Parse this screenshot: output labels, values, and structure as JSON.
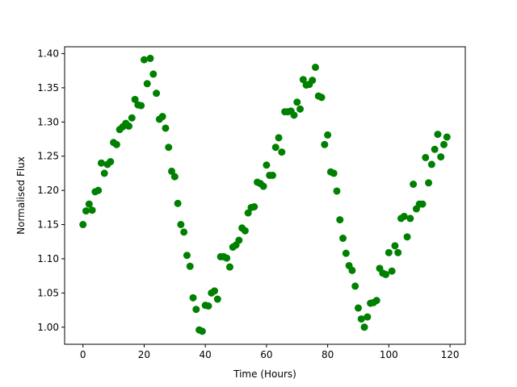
{
  "chart_data": {
    "type": "scatter",
    "xlabel": "Time (Hours)",
    "ylabel": "Normalised Flux",
    "xlim": [
      -6,
      125
    ],
    "ylim": [
      0.975,
      1.41
    ],
    "xticks": [
      0,
      20,
      40,
      60,
      80,
      100,
      120
    ],
    "yticks": [
      1.0,
      1.05,
      1.1,
      1.15,
      1.2,
      1.25,
      1.3,
      1.35,
      1.4
    ],
    "ytick_labels": [
      "1.00",
      "1.05",
      "1.10",
      "1.15",
      "1.20",
      "1.25",
      "1.30",
      "1.35",
      "1.40"
    ],
    "grid": false,
    "marker_color": "#008000",
    "points": [
      {
        "x": 0,
        "y": 1.15
      },
      {
        "x": 1,
        "y": 1.17
      },
      {
        "x": 2,
        "y": 1.18
      },
      {
        "x": 3,
        "y": 1.171
      },
      {
        "x": 4,
        "y": 1.198
      },
      {
        "x": 5,
        "y": 1.2
      },
      {
        "x": 6,
        "y": 1.24
      },
      {
        "x": 7,
        "y": 1.225
      },
      {
        "x": 8,
        "y": 1.238
      },
      {
        "x": 9,
        "y": 1.242
      },
      {
        "x": 10,
        "y": 1.27
      },
      {
        "x": 11,
        "y": 1.267
      },
      {
        "x": 12,
        "y": 1.289
      },
      {
        "x": 13,
        "y": 1.293
      },
      {
        "x": 14,
        "y": 1.298
      },
      {
        "x": 15,
        "y": 1.294
      },
      {
        "x": 16,
        "y": 1.306
      },
      {
        "x": 17,
        "y": 1.333
      },
      {
        "x": 18,
        "y": 1.325
      },
      {
        "x": 19,
        "y": 1.324
      },
      {
        "x": 20,
        "y": 1.391
      },
      {
        "x": 21,
        "y": 1.356
      },
      {
        "x": 22,
        "y": 1.393
      },
      {
        "x": 23,
        "y": 1.37
      },
      {
        "x": 24,
        "y": 1.342
      },
      {
        "x": 25,
        "y": 1.304
      },
      {
        "x": 26,
        "y": 1.308
      },
      {
        "x": 27,
        "y": 1.291
      },
      {
        "x": 28,
        "y": 1.263
      },
      {
        "x": 29,
        "y": 1.228
      },
      {
        "x": 30,
        "y": 1.22
      },
      {
        "x": 31,
        "y": 1.181
      },
      {
        "x": 32,
        "y": 1.15
      },
      {
        "x": 33,
        "y": 1.139
      },
      {
        "x": 34,
        "y": 1.105
      },
      {
        "x": 35,
        "y": 1.089
      },
      {
        "x": 36,
        "y": 1.043
      },
      {
        "x": 37,
        "y": 1.026
      },
      {
        "x": 38,
        "y": 0.996
      },
      {
        "x": 39,
        "y": 0.994
      },
      {
        "x": 40,
        "y": 1.032
      },
      {
        "x": 41,
        "y": 1.031
      },
      {
        "x": 42,
        "y": 1.05
      },
      {
        "x": 43,
        "y": 1.053
      },
      {
        "x": 44,
        "y": 1.041
      },
      {
        "x": 45,
        "y": 1.103
      },
      {
        "x": 46,
        "y": 1.103
      },
      {
        "x": 47,
        "y": 1.101
      },
      {
        "x": 48,
        "y": 1.088
      },
      {
        "x": 49,
        "y": 1.117
      },
      {
        "x": 50,
        "y": 1.12
      },
      {
        "x": 51,
        "y": 1.127
      },
      {
        "x": 52,
        "y": 1.145
      },
      {
        "x": 53,
        "y": 1.141
      },
      {
        "x": 54,
        "y": 1.167
      },
      {
        "x": 55,
        "y": 1.175
      },
      {
        "x": 56,
        "y": 1.176
      },
      {
        "x": 57,
        "y": 1.212
      },
      {
        "x": 58,
        "y": 1.21
      },
      {
        "x": 59,
        "y": 1.206
      },
      {
        "x": 60,
        "y": 1.237
      },
      {
        "x": 61,
        "y": 1.222
      },
      {
        "x": 62,
        "y": 1.222
      },
      {
        "x": 63,
        "y": 1.263
      },
      {
        "x": 64,
        "y": 1.277
      },
      {
        "x": 65,
        "y": 1.256
      },
      {
        "x": 66,
        "y": 1.315
      },
      {
        "x": 67,
        "y": 1.315
      },
      {
        "x": 68,
        "y": 1.316
      },
      {
        "x": 69,
        "y": 1.31
      },
      {
        "x": 70,
        "y": 1.329
      },
      {
        "x": 71,
        "y": 1.319
      },
      {
        "x": 72,
        "y": 1.362
      },
      {
        "x": 73,
        "y": 1.354
      },
      {
        "x": 74,
        "y": 1.355
      },
      {
        "x": 75,
        "y": 1.361
      },
      {
        "x": 76,
        "y": 1.38
      },
      {
        "x": 77,
        "y": 1.338
      },
      {
        "x": 78,
        "y": 1.336
      },
      {
        "x": 79,
        "y": 1.267
      },
      {
        "x": 80,
        "y": 1.281
      },
      {
        "x": 81,
        "y": 1.227
      },
      {
        "x": 82,
        "y": 1.225
      },
      {
        "x": 83,
        "y": 1.199
      },
      {
        "x": 84,
        "y": 1.157
      },
      {
        "x": 85,
        "y": 1.13
      },
      {
        "x": 86,
        "y": 1.108
      },
      {
        "x": 87,
        "y": 1.09
      },
      {
        "x": 88,
        "y": 1.083
      },
      {
        "x": 89,
        "y": 1.06
      },
      {
        "x": 90,
        "y": 1.028
      },
      {
        "x": 91,
        "y": 1.012
      },
      {
        "x": 92,
        "y": 1.0
      },
      {
        "x": 93,
        "y": 1.015
      },
      {
        "x": 94,
        "y": 1.035
      },
      {
        "x": 95,
        "y": 1.036
      },
      {
        "x": 96,
        "y": 1.039
      },
      {
        "x": 97,
        "y": 1.086
      },
      {
        "x": 98,
        "y": 1.079
      },
      {
        "x": 99,
        "y": 1.077
      },
      {
        "x": 100,
        "y": 1.109
      },
      {
        "x": 101,
        "y": 1.082
      },
      {
        "x": 102,
        "y": 1.119
      },
      {
        "x": 103,
        "y": 1.109
      },
      {
        "x": 104,
        "y": 1.159
      },
      {
        "x": 105,
        "y": 1.162
      },
      {
        "x": 106,
        "y": 1.132
      },
      {
        "x": 107,
        "y": 1.159
      },
      {
        "x": 108,
        "y": 1.209
      },
      {
        "x": 109,
        "y": 1.173
      },
      {
        "x": 110,
        "y": 1.18
      },
      {
        "x": 111,
        "y": 1.18
      },
      {
        "x": 112,
        "y": 1.248
      },
      {
        "x": 113,
        "y": 1.211
      },
      {
        "x": 114,
        "y": 1.238
      },
      {
        "x": 115,
        "y": 1.26
      },
      {
        "x": 116,
        "y": 1.282
      },
      {
        "x": 117,
        "y": 1.249
      },
      {
        "x": 118,
        "y": 1.267
      },
      {
        "x": 119,
        "y": 1.278
      }
    ]
  }
}
